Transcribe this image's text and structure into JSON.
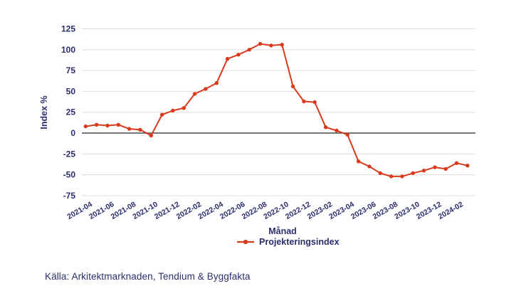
{
  "chart_data": {
    "type": "line",
    "title": "",
    "xlabel": "Månad",
    "ylabel": "Index %",
    "legend_position": "bottom",
    "grid": true,
    "ylim": [
      -75,
      125
    ],
    "yticks": [
      125,
      100,
      75,
      50,
      25,
      0,
      -25,
      -50,
      -75
    ],
    "xtick_every": 2,
    "x": [
      "2021-04",
      "2021-05",
      "2021-06",
      "2021-07",
      "2021-08",
      "2021-09",
      "2021-10",
      "2021-11",
      "2021-12",
      "2022-01",
      "2022-02",
      "2022-03",
      "2022-04",
      "2022-05",
      "2022-06",
      "2022-07",
      "2022-08",
      "2022-09",
      "2022-10",
      "2022-11",
      "2022-12",
      "2023-01",
      "2023-02",
      "2023-03",
      "2023-04",
      "2023-05",
      "2023-06",
      "2023-07",
      "2023-08",
      "2023-09",
      "2023-10",
      "2023-11",
      "2023-12",
      "2024-01",
      "2024-02",
      "2024-03"
    ],
    "series": [
      {
        "name": "Projekteringsindex",
        "values": [
          8,
          10,
          9,
          10,
          5,
          4,
          -3,
          22,
          27,
          30,
          47,
          53,
          60,
          89,
          94,
          100,
          107,
          105,
          106,
          56,
          38,
          37,
          7,
          3,
          -2,
          -34,
          -40,
          -48,
          -52,
          -52,
          -48,
          -45,
          -41,
          -43,
          -36,
          -39
        ]
      }
    ]
  },
  "footer": {
    "source": "Källa: Arkitektmarknaden, Tendium & Byggfakta"
  },
  "colors": {
    "accent_red": "#d83a1c",
    "text_navy": "#2b2d6e",
    "gridline": "#dcdcdc",
    "zero_line": "#4a4a4a",
    "background": "#ffffff"
  }
}
